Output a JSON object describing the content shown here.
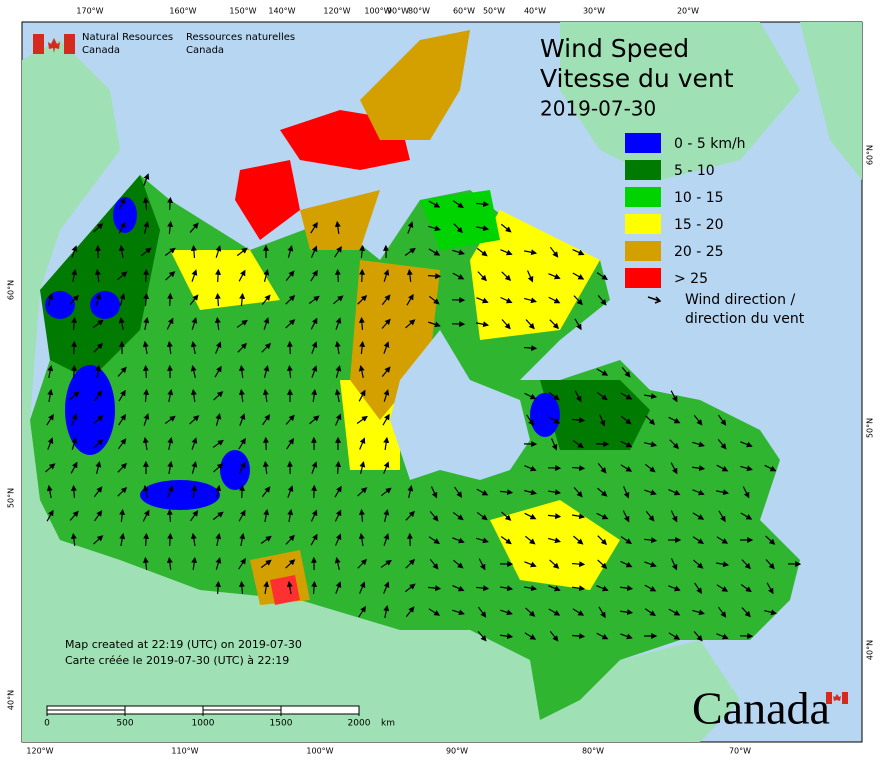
{
  "header": {
    "agency_en": [
      "Natural Resources",
      "Canada"
    ],
    "agency_fr": [
      "Ressources naturelles",
      "Canada"
    ]
  },
  "title": {
    "line1": "Wind Speed",
    "line2": "Vitesse du vent",
    "date": "2019-07-30"
  },
  "legend": {
    "items": [
      {
        "label": "0 - 5 km/h",
        "color": "#0000ff"
      },
      {
        "label": "5 - 10",
        "color": "#007a00"
      },
      {
        "label": "10 - 15",
        "color": "#00d400"
      },
      {
        "label": "15 - 20",
        "color": "#ffff00"
      },
      {
        "label": "20 - 25",
        "color": "#d4a000"
      },
      {
        "label": "> 25",
        "color": "#ff0000"
      }
    ],
    "direction_label": [
      "Wind direction /",
      "direction du vent"
    ]
  },
  "graticule": {
    "top": [
      "170°W",
      "160°W",
      "150°W",
      "140°W",
      "120°W",
      "100°W",
      "90°W",
      "80°W",
      "60°W",
      "50°W",
      "40°W",
      "30°W",
      "20°W"
    ],
    "bottom": [
      "120°W",
      "110°W",
      "100°W",
      "90°W",
      "80°W",
      "70°W"
    ],
    "left": [
      "60°N",
      "50°N",
      "40°N"
    ],
    "right": [
      "60°N",
      "50°N",
      "40°N"
    ]
  },
  "notes": [
    "Map created at 22:19 (UTC) on 2019-07-30",
    "Carte créée le 2019-07-30 (UTC) à 22:19"
  ],
  "scale_bar": {
    "ticks": [
      0,
      500,
      1000,
      1500,
      2000
    ],
    "unit": "km"
  },
  "wordmark": "Canada"
}
